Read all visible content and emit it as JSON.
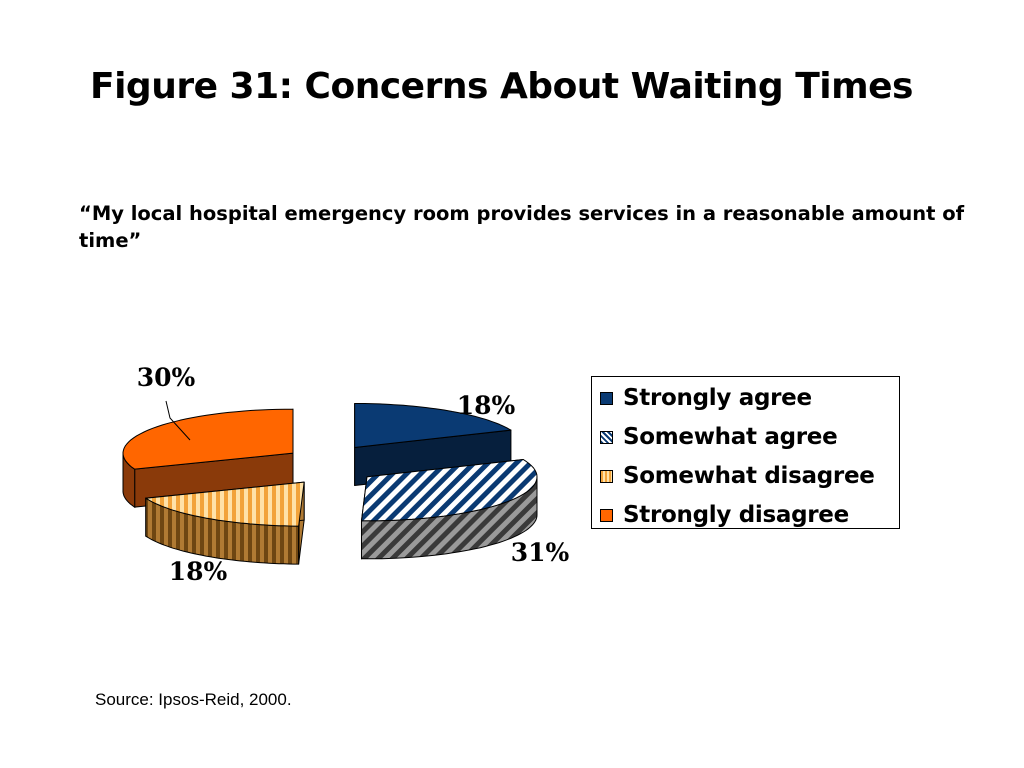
{
  "title": "Figure 31: Concerns About Waiting Times",
  "subtitle": "“My local hospital emergency room provides services in a reasonable amount of time”",
  "source": "Source: Ipsos-Reid, 2000.",
  "chart_data": {
    "type": "pie",
    "style": "3d-exploded",
    "legend_position": "right",
    "slices": [
      {
        "name": "Strongly agree",
        "value": 18,
        "label": "18%",
        "color": "#0A3A73",
        "pattern": "solid"
      },
      {
        "name": "Somewhat agree",
        "value": 31,
        "label": "31%",
        "color": "#0A3A73",
        "pattern": "diagonal-stripes"
      },
      {
        "name": "Somewhat disagree",
        "value": 18,
        "label": "18%",
        "color": "#FFB347",
        "pattern": "vertical-stripes"
      },
      {
        "name": "Strongly disagree",
        "value": 30,
        "label": "30%",
        "color": "#FF6600",
        "pattern": "solid"
      }
    ]
  }
}
